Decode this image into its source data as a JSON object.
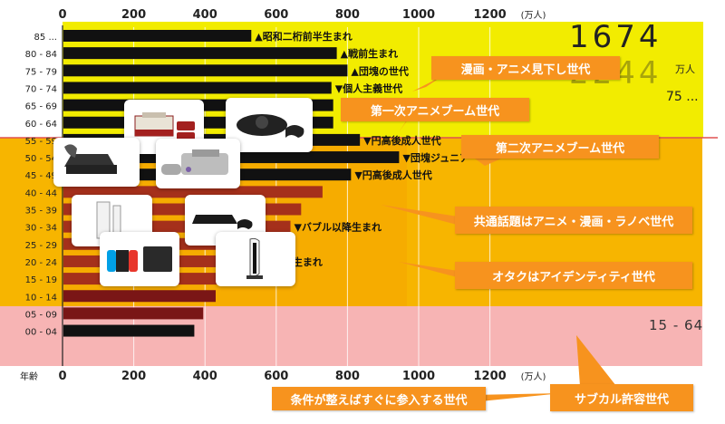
{
  "chart_data": {
    "type": "bar",
    "orientation": "horizontal",
    "xlim": [
      0,
      1400
    ],
    "xticks": [
      "0",
      "200",
      "400",
      "600",
      "800",
      "1000",
      "1200"
    ],
    "unit_label": "(万人)",
    "age_header": "年齢",
    "categories": [
      "85 ...",
      "80 - 84",
      "75 - 79",
      "70 - 74",
      "65 - 69",
      "60 - 64",
      "55 - 59",
      "50 - 54",
      "45 - 49",
      "40 - 44",
      "35 - 39",
      "30 - 34",
      "25 - 29",
      "20 - 24",
      "15 - 19",
      "10 - 14",
      "05 - 09",
      "00 - 04"
    ],
    "values": [
      530,
      770,
      800,
      755,
      760,
      760,
      835,
      945,
      810,
      730,
      670,
      640,
      560,
      580,
      500,
      430,
      395,
      370
    ],
    "bar_labels": [
      {
        "row": 0,
        "text": "▲昭和二桁前半生まれ"
      },
      {
        "row": 1,
        "text": "▲戦前生まれ"
      },
      {
        "row": 2,
        "text": "▲団塊の世代"
      },
      {
        "row": 3,
        "text": "▼個人主義世代"
      },
      {
        "row": 6,
        "text": "▼円高後成人世代"
      },
      {
        "row": 7,
        "text": "▼団塊ジュニア"
      },
      {
        "row": 8,
        "text": "▼円高後成人世代"
      },
      {
        "row": 11,
        "text": "▼バブル以降生まれ"
      },
      {
        "row": 13,
        "text": "世紀生まれ"
      }
    ],
    "band_labels": {
      "old_total": "1674",
      "old_total2": "2244",
      "old_unit": "万人",
      "old_range": "75 ...",
      "young_range": "15 - 64"
    },
    "callouts": [
      "漫画・アニメ見下し世代",
      "第一次アニメブーム世代",
      "第二次アニメブーム世代",
      "共通話題はアニメ・漫画・ラノベ世代",
      "オタクはアイデンティティ世代",
      "サブカル許容世代",
      "条件が整えばすぐに参入する世代"
    ],
    "consoles": [
      "famicom",
      "mega-drive",
      "nintendo-64",
      "super-famicom",
      "wii",
      "playstation-3",
      "nintendo-switch",
      "playstation-5"
    ],
    "colors": {
      "yellow_band": "#f2ec00",
      "orange_band_top": "#f7b500",
      "pink_band": "#f7b4b4",
      "bar_dark": "#111111",
      "bar_red": "#7a1616",
      "bar_orange": "#a5301b",
      "callout": "#f7931e",
      "divider": "#e05252"
    }
  }
}
